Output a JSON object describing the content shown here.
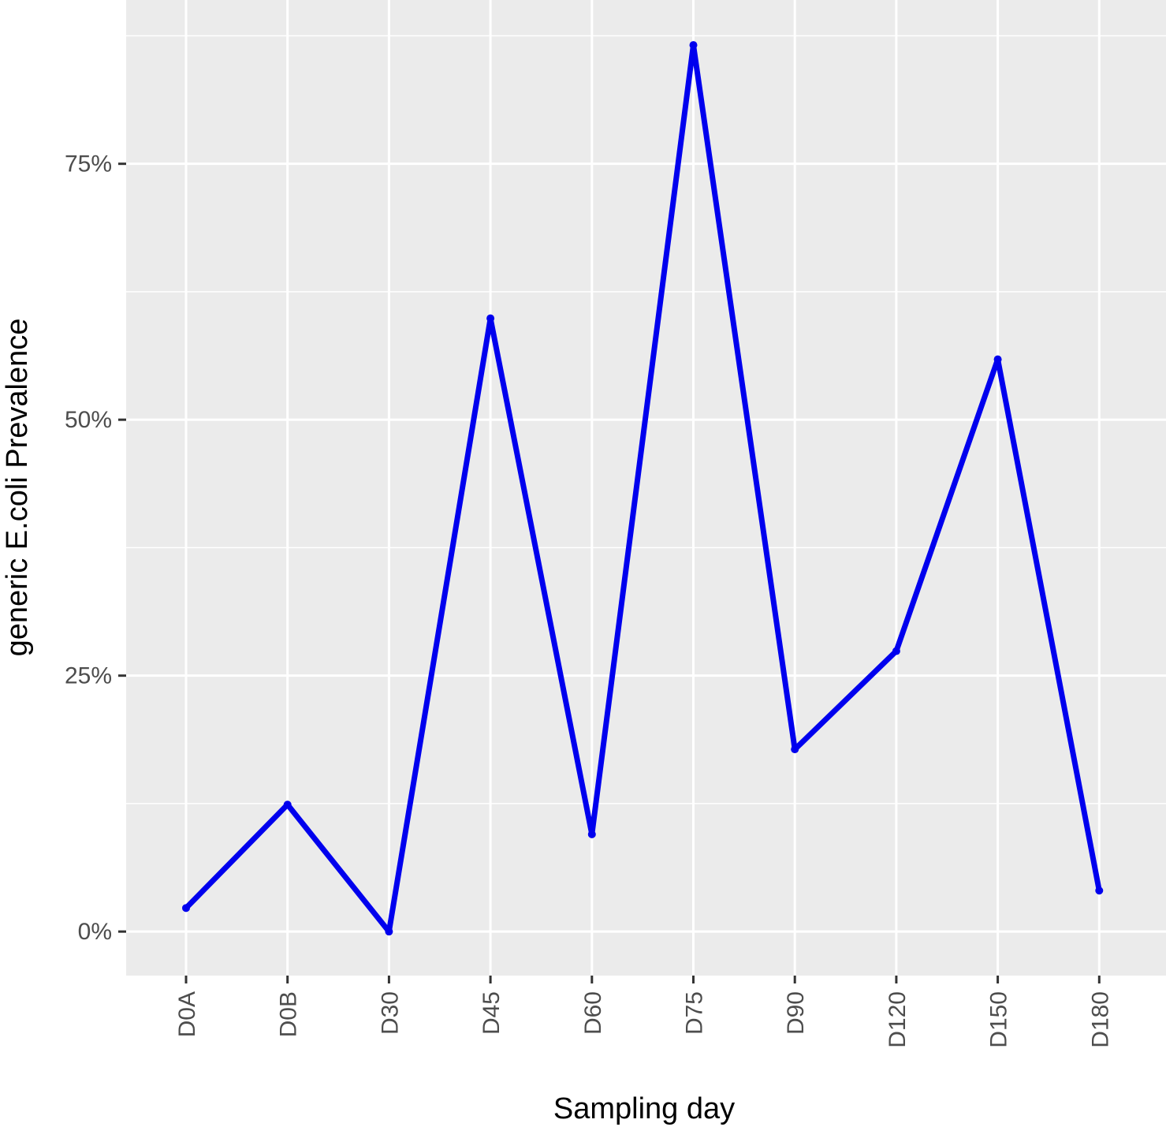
{
  "chart_data": {
    "type": "line",
    "xlabel": "Sampling day",
    "ylabel": "generic E.coli Prevalence",
    "categories": [
      "D0A",
      "D0B",
      "D30",
      "D45",
      "D60",
      "D75",
      "D90",
      "D120",
      "D150",
      "D180"
    ],
    "series": [
      {
        "values": [
          0.023,
          0.124,
          0.0,
          0.599,
          0.095,
          0.866,
          0.178,
          0.274,
          0.559,
          0.04
        ]
      }
    ],
    "yticks": [
      0,
      0.25,
      0.5,
      0.75
    ],
    "ytick_labels": [
      "0%",
      "25%",
      "50%",
      "75%"
    ],
    "ylim": [
      -0.043,
      0.91
    ],
    "grid": true,
    "colors": {
      "line": "#0000ee",
      "panel": "#ebebeb",
      "grid": "#ffffff",
      "tick_text": "#4d4d4d"
    }
  }
}
